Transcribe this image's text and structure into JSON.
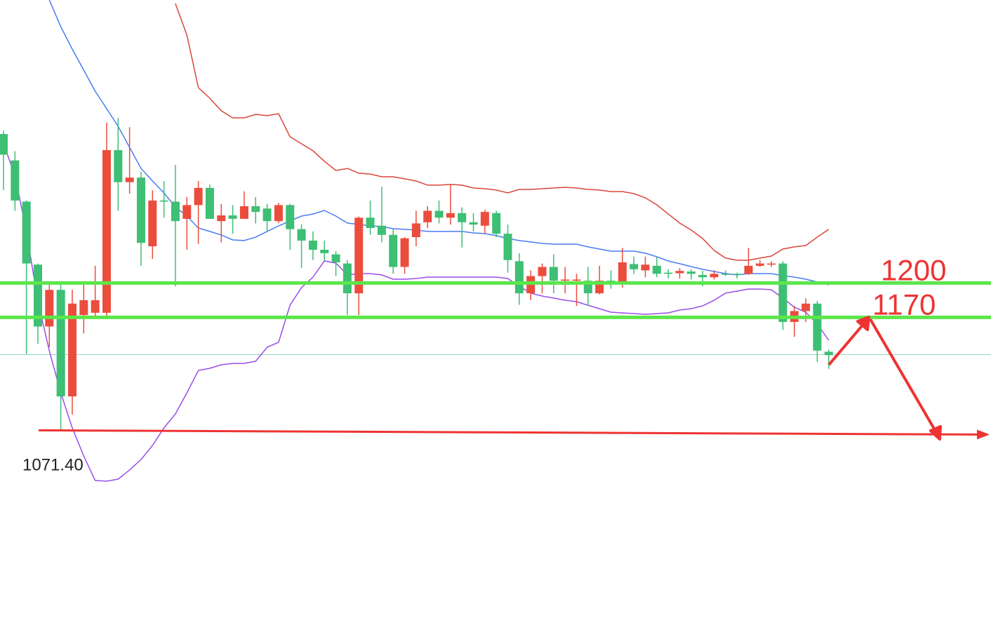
{
  "chart_data": {
    "type": "candlestick",
    "ylim": [
      891,
      1447
    ],
    "categories": [
      null,
      null,
      null,
      null,
      null,
      null,
      null,
      null,
      null,
      null,
      null,
      null,
      null,
      null,
      null,
      null,
      null,
      null,
      null,
      null,
      null,
      null,
      null,
      null,
      null,
      null,
      null,
      null,
      null,
      null,
      null,
      null,
      null,
      null,
      null,
      null,
      null,
      null,
      null,
      null,
      null,
      null,
      null,
      null,
      null,
      null,
      null,
      null,
      null,
      null,
      null,
      null,
      null,
      null,
      null,
      null,
      null,
      null,
      null,
      null,
      null,
      null,
      null,
      null,
      null,
      null,
      null,
      null,
      null,
      null,
      null,
      null,
      null
    ],
    "open": [
      1330,
      1307,
      1271,
      1216,
      1162,
      1194,
      1101,
      1172,
      1174,
      1174,
      1316,
      1288,
      1292,
      1232,
      1272,
      1271,
      1256,
      1268,
      1283,
      1254,
      1259,
      1256,
      1267,
      1265,
      1254,
      1268,
      1247,
      1237,
      1229,
      1225,
      1217,
      1191,
      1257,
      1250,
      1242,
      1214,
      1240,
      1253,
      1263,
      1257,
      1261,
      1253,
      1250,
      1261,
      1243,
      1219,
      1191,
      1206,
      1214,
      1202,
      1202,
      1202,
      1191,
      1202,
      1200.6,
      1216.5,
      1211,
      1215,
      1209,
      1208.5,
      1210,
      1207,
      1205,
      1208,
      1208,
      1208,
      1215,
      1216,
      1217,
      1166,
      1175.5,
      1182,
      1140
    ],
    "high": [
      1333,
      1315,
      1272,
      1217,
      1199,
      1199,
      1194,
      1199,
      1215,
      1340,
      1344,
      1336,
      1297,
      1281,
      1289,
      1303,
      1275,
      1289,
      1286,
      1269,
      1268,
      1280,
      1275,
      1269,
      1270,
      1269,
      1251,
      1245,
      1237,
      1228,
      1220,
      1258,
      1272,
      1284,
      1247,
      1240,
      1263,
      1267,
      1272,
      1286,
      1266,
      1261,
      1264,
      1263,
      1251,
      1226,
      1211,
      1217,
      1225,
      1214,
      1208,
      1214,
      1215,
      1211,
      1230.6,
      1223,
      1223,
      1223,
      1212,
      1213,
      1212,
      1210.5,
      1211,
      1211,
      1209,
      1230.6,
      1220,
      1219,
      1219,
      1180,
      1186.5,
      1184.5,
      1142
    ],
    "low": [
      1281,
      1263,
      1138,
      1147,
      1144,
      1071.4,
      1085,
      1156,
      1171,
      1171,
      1263,
      1278,
      1215,
      1221,
      1257,
      1197,
      1229,
      1234,
      1256,
      1235.5,
      1243,
      1256,
      1252,
      1245,
      1252,
      1229,
      1213,
      1220,
      1219,
      1206,
      1172,
      1172,
      1242,
      1235.5,
      1208,
      1208,
      1232,
      1248,
      1252,
      1251,
      1231,
      1245,
      1243,
      1240,
      1209,
      1181,
      1185,
      1191,
      1191,
      1191,
      1180,
      1180,
      1190,
      1195,
      1196,
      1208,
      1205,
      1205,
      1204,
      1204,
      1203,
      1197,
      1203,
      1206,
      1204,
      1207,
      1214,
      1214,
      1159,
      1153,
      1166,
      1131,
      1125
    ],
    "close": [
      1312,
      1272,
      1217,
      1162,
      1194,
      1101,
      1182,
      1185,
      1185,
      1316,
      1288,
      1292,
      1235,
      1272,
      1271,
      1254,
      1268,
      1283,
      1256,
      1259,
      1256,
      1267,
      1262,
      1254,
      1268,
      1247,
      1237,
      1229,
      1226,
      1218,
      1191,
      1257,
      1248,
      1242,
      1214,
      1239,
      1252,
      1263,
      1257,
      1261,
      1253,
      1251,
      1262,
      1243,
      1220,
      1191,
      1206,
      1214,
      1202,
      1203,
      1203,
      1191,
      1202,
      1200.6,
      1218,
      1212,
      1216,
      1208,
      1208,
      1210.5,
      1208,
      1205,
      1208,
      1208,
      1207,
      1215,
      1217,
      1217,
      1166,
      1175.5,
      1182,
      1141,
      1137
    ],
    "up_color": "#eb4d3d",
    "down_color": "#3dbf74",
    "bands": [
      {
        "color": "#4a7cf0",
        "values": [
          null,
          null,
          null,
          null,
          1447,
          1423.7,
          1404.1,
          1385.8,
          1367.4,
          1352.1,
          1336.8,
          1318.4,
          1300,
          1289,
          1278.6,
          1266.4,
          1258.4,
          1248,
          1245,
          1241.9,
          1237.6,
          1237,
          1240,
          1245,
          1249.8,
          1254.1,
          1258.4,
          1260.2,
          1263.3,
          1258.4,
          1252.3,
          1251.1,
          1249.8,
          1249.2,
          1247.4,
          1246.8,
          1246.2,
          1245,
          1245,
          1245,
          1245,
          1243.7,
          1243.1,
          1241.3,
          1238.8,
          1237,
          1235.8,
          1234.5,
          1233.9,
          1233.9,
          1233.9,
          1231.5,
          1229.6,
          1227.8,
          1227.8,
          1227.8,
          1226,
          1222.9,
          1219.2,
          1216.8,
          1214.3,
          1211.9,
          1210,
          1208.2,
          1207,
          1208.2,
          1208.2,
          1208.2,
          1206.4,
          1205.1,
          1203.3,
          1200.9,
          1198.4
        ]
      },
      {
        "color": "#d9473a",
        "values": [
          null,
          null,
          null,
          null,
          null,
          null,
          null,
          null,
          null,
          null,
          null,
          null,
          null,
          null,
          null,
          1443.9,
          1416.4,
          1370.5,
          1361.3,
          1350.3,
          1344.1,
          1344.1,
          1347.2,
          1346,
          1347.8,
          1327.6,
          1321.5,
          1315.4,
          1306.2,
          1298.2,
          1300,
          1295.8,
          1295.1,
          1292.7,
          1292.7,
          1290.9,
          1289,
          1285.4,
          1285.4,
          1286,
          1285.4,
          1282.9,
          1282.3,
          1281.1,
          1278.6,
          1281.7,
          1281.7,
          1282.3,
          1282.9,
          1283.5,
          1282.9,
          1281.7,
          1281.1,
          1279.8,
          1279.8,
          1278,
          1274.3,
          1268.2,
          1260.2,
          1252.3,
          1246.2,
          1238.8,
          1228.4,
          1221.7,
          1219.8,
          1219.8,
          1221.7,
          1223.5,
          1229.6,
          1231.5,
          1232.7,
          1240,
          1246.8
        ]
      },
      {
        "color": "#9b4dea",
        "values": [
          1321.5,
          1293.9,
          1244.9,
          1183.7,
          1140.8,
          1104.1,
          1073.5,
          1049,
          1027.6,
          1027,
          1028.8,
          1036.8,
          1045.9,
          1058.2,
          1073.5,
          1085.7,
          1104.1,
          1123.7,
          1125.5,
          1128.6,
          1129.8,
          1129.8,
          1131.7,
          1143.9,
          1148.2,
          1180.6,
          1196,
          1205.1,
          1219.2,
          1217.4,
          1207,
          1208.2,
          1208.2,
          1207,
          1203.3,
          1203.3,
          1203.9,
          1205.1,
          1205.1,
          1205.1,
          1205.1,
          1205.1,
          1205.1,
          1205.1,
          1203.9,
          1197.2,
          1191.1,
          1188.6,
          1186.8,
          1184.9,
          1183.7,
          1180.6,
          1177.6,
          1174.5,
          1173.9,
          1173.3,
          1172.7,
          1173.3,
          1173.9,
          1176.4,
          1177.6,
          1180,
          1184.9,
          1191.1,
          1192.9,
          1194.7,
          1194.7,
          1194.1,
          1186.8,
          1178.8,
          1174.5,
          1164.1,
          1150
        ]
      }
    ],
    "levels": [
      1200,
      1170
    ],
    "level_color": "#5ce64a",
    "annotation_color": "#ee3333",
    "last_price": 1137.5,
    "last_price_color": "#8fd8b8",
    "low_marker": {
      "value": 1071.4,
      "label": "1071.40"
    }
  }
}
